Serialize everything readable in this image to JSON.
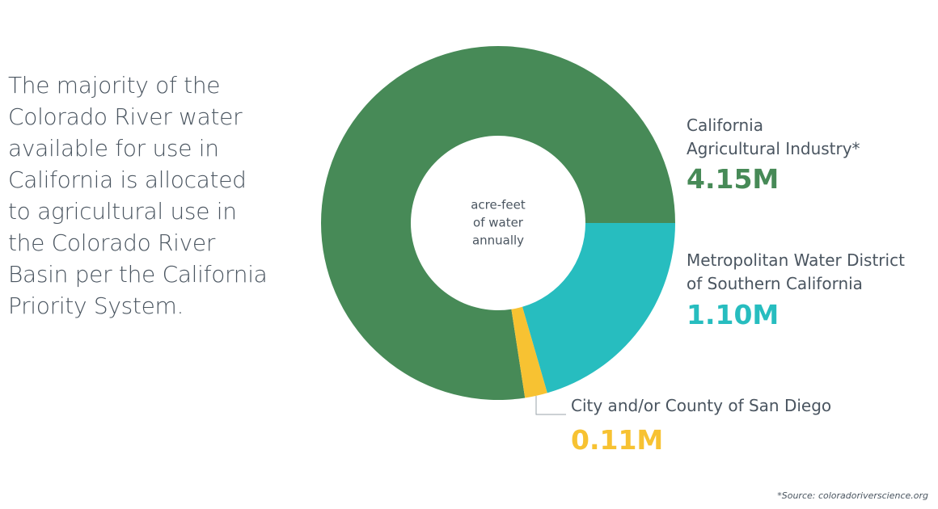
{
  "chart_data": {
    "type": "donut",
    "description": [
      "The majority of the",
      "Colorado River water",
      "available for use in",
      "California is allocated",
      "to agricultural use in",
      "the Colorado River",
      "Basin per the California",
      "Priority System."
    ],
    "center_label": [
      "acre-feet",
      "of water",
      "annually"
    ],
    "categories": [
      "California\nAgricultural Industry*",
      "Metropolitan Water District\nof Southern California",
      "City and/or County of San Diego"
    ],
    "values": [
      4150000,
      1100000,
      110000
    ],
    "value_labels": [
      "4.15M",
      "1.10M",
      "0.11M"
    ],
    "colors": [
      "#478a57",
      "#27bdbf",
      "#f7c232"
    ],
    "source": "*Source: coloradoriverscience.org"
  }
}
